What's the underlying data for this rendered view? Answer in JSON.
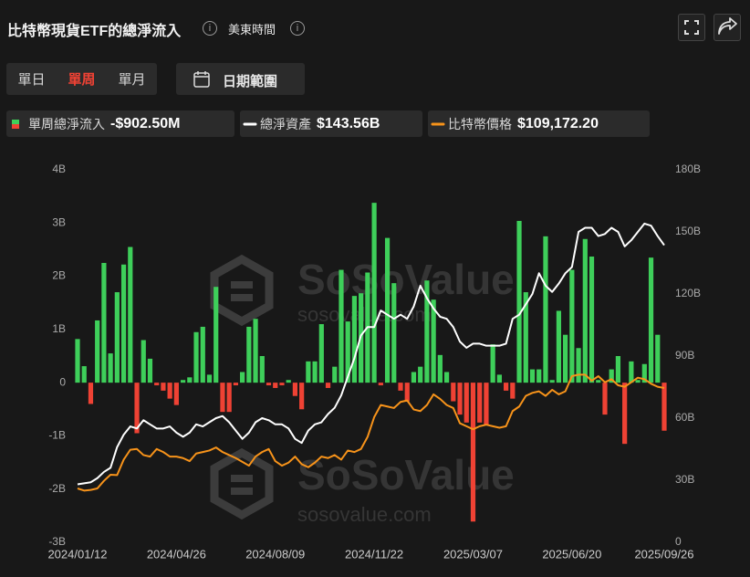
{
  "header": {
    "title": "比特幣現貨ETF的總淨流入",
    "timezone": "美東時間"
  },
  "controls": {
    "periods": [
      "單日",
      "單周",
      "單月"
    ],
    "active_period": 1,
    "date_range": "日期範圍"
  },
  "watermark": {
    "brand": "SoSoValue",
    "site": "sosovalue.com"
  },
  "chart_data": {
    "type": "combo",
    "categories": [
      "2024/01/12",
      null,
      null,
      null,
      null,
      null,
      null,
      null,
      null,
      null,
      null,
      null,
      null,
      null,
      null,
      "2024/04/26",
      null,
      null,
      null,
      null,
      null,
      null,
      null,
      null,
      null,
      null,
      null,
      null,
      null,
      null,
      "2024/08/09",
      null,
      null,
      null,
      null,
      null,
      null,
      null,
      null,
      null,
      null,
      null,
      null,
      null,
      null,
      "2024/11/22",
      null,
      null,
      null,
      null,
      null,
      null,
      null,
      null,
      null,
      null,
      null,
      null,
      null,
      null,
      "2025/03/07",
      null,
      null,
      null,
      null,
      null,
      null,
      null,
      null,
      null,
      null,
      null,
      null,
      null,
      null,
      "2025/06/20",
      null,
      null,
      null,
      null,
      null,
      null,
      null,
      null,
      null,
      null,
      null,
      null,
      null,
      "2025/09/26"
    ],
    "series": [
      {
        "name": "單周總淨流入",
        "type": "bar",
        "legend_value": "-$902.50M",
        "positive_color": "#3ecf5a",
        "negative_color": "#ef4234",
        "values": [
          0.82,
          0.31,
          -0.4,
          1.17,
          2.25,
          0.55,
          1.7,
          2.22,
          2.55,
          -0.95,
          0.8,
          0.45,
          -0.05,
          -0.15,
          -0.3,
          -0.42,
          0.05,
          0.1,
          0.95,
          1.05,
          0.15,
          1.8,
          -0.55,
          -0.55,
          -0.05,
          0.2,
          1.05,
          1.2,
          0.5,
          -0.05,
          -0.1,
          -0.05,
          0.05,
          -0.25,
          -0.5,
          0.4,
          0.4,
          1.1,
          -0.1,
          0.3,
          2.12,
          1.15,
          1.63,
          1.68,
          2.07,
          3.38,
          -0.05,
          2.72,
          1.87,
          -0.15,
          -0.35,
          0.2,
          0.3,
          1.92,
          1.56,
          0.52,
          0.2,
          -0.35,
          -0.6,
          -0.75,
          -2.61,
          -0.75,
          -0.8,
          0.72,
          0.15,
          -0.15,
          -0.3,
          3.04,
          1.7,
          0.25,
          0.25,
          2.75,
          0.05,
          1.35,
          0.9,
          2.12,
          0.65,
          2.7,
          2.37,
          0.05,
          -0.6,
          0.25,
          0.5,
          -1.15,
          0.4,
          0.05,
          0.35,
          2.35,
          0.9,
          -0.9025
        ]
      },
      {
        "name": "總淨資產",
        "type": "line",
        "axis": "y2",
        "color": "#ffffff",
        "legend_value": "$143.56B",
        "values": [
          28,
          28.5,
          29,
          31,
          34,
          36,
          46,
          52,
          56,
          55,
          59,
          57,
          55,
          55,
          56,
          53,
          51,
          53,
          57,
          56,
          58,
          60,
          61,
          58,
          54,
          50,
          53,
          58,
          60,
          59,
          57,
          57,
          55,
          50,
          48,
          54,
          57,
          58,
          62,
          65,
          71,
          80,
          89,
          100,
          104,
          104,
          112,
          110,
          108,
          110,
          108,
          114,
          124,
          118,
          113,
          109,
          108,
          104,
          97,
          94,
          96,
          96,
          95,
          95,
          95,
          96,
          108,
          110,
          115,
          120,
          130,
          124,
          121,
          125,
          130,
          133,
          150,
          152,
          152,
          148,
          149,
          152,
          150,
          143,
          146,
          150,
          154,
          153,
          148,
          143.56
        ]
      },
      {
        "name": "比特幣價格",
        "type": "line",
        "axis": "y3",
        "color": "#f7931a",
        "legend_value": "$109,172.20",
        "values": [
          43000,
          41600,
          42000,
          43000,
          48000,
          52000,
          51800,
          62000,
          68500,
          69000,
          65000,
          64000,
          69000,
          67000,
          64000,
          64000,
          63000,
          61000,
          66000,
          67000,
          68000,
          70000,
          67000,
          65000,
          63000,
          60500,
          58000,
          64000,
          67000,
          69000,
          61000,
          58000,
          60000,
          64000,
          59000,
          57000,
          60000,
          64000,
          63000,
          65000,
          62000,
          68000,
          67000,
          69000,
          77000,
          90000,
          98000,
          97000,
          96000,
          100000,
          101000,
          95000,
          94000,
          98000,
          105000,
          102000,
          98000,
          96000,
          86000,
          84000,
          82000,
          84000,
          85000,
          84000,
          83000,
          84000,
          94000,
          97000,
          104000,
          106000,
          107000,
          104000,
          108000,
          105000,
          107000,
          117000,
          118000,
          118000,
          114000,
          117000,
          113000,
          115000,
          111000,
          110000,
          113000,
          116000,
          115000,
          112000,
          110000,
          109172.2
        ]
      }
    ],
    "ylim": [
      -3,
      4
    ],
    "yticks": [
      {
        "value": -3,
        "label": "-3B"
      },
      {
        "value": -2,
        "label": "-2B"
      },
      {
        "value": -1,
        "label": "-1B"
      },
      0,
      {
        "value": 1,
        "label": "1B"
      },
      {
        "value": 2,
        "label": "2B"
      },
      {
        "value": 3,
        "label": "3B"
      },
      {
        "value": 4,
        "label": "4B"
      }
    ],
    "y2lim": [
      0,
      180
    ],
    "y2ticks": [
      0,
      {
        "value": 30,
        "label": "30B"
      },
      {
        "value": 60,
        "label": "60B"
      },
      {
        "value": 90,
        "label": "90B"
      },
      {
        "value": 120,
        "label": "120B"
      },
      {
        "value": 150,
        "label": "150B"
      },
      {
        "value": 180,
        "label": "180B"
      }
    ],
    "y3lim": [
      7500,
      253000
    ],
    "grid": false
  }
}
